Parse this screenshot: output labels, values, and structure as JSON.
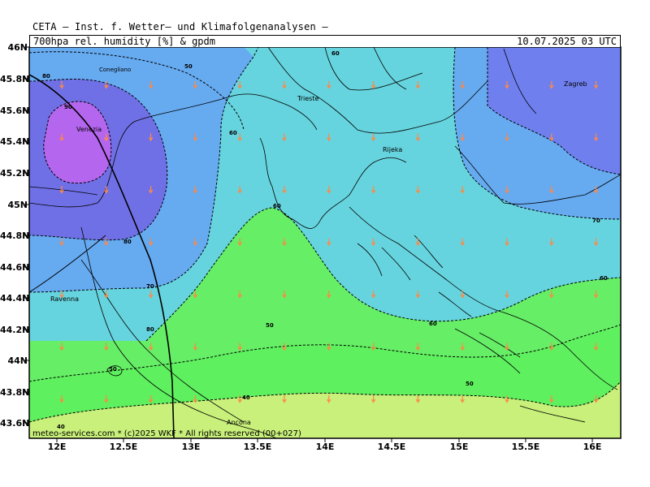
{
  "header": {
    "title": "CETA — Inst. f. Wetter— und Klimafolgenanalysen —",
    "subtitle": "700hpa rel. humidity [%] & gpdm",
    "datetime": "10.07.2025 03 UTC"
  },
  "credit": "meteo-services.com * (c)2025 WKF * All rights reserved (00+027)",
  "axes": {
    "y_labels": [
      "46N",
      "45.8N",
      "45.6N",
      "45.4N",
      "45.2N",
      "45N",
      "44.8N",
      "44.6N",
      "44.4N",
      "44.2N",
      "44N",
      "43.8N",
      "43.6N"
    ],
    "x_labels": [
      "12E",
      "12.5E",
      "13E",
      "13.5E",
      "14E",
      "14.5E",
      "15E",
      "15.5E",
      "16E"
    ]
  },
  "cities": [
    {
      "name": "Conegliano",
      "lon": 12.3,
      "lat": 45.89
    },
    {
      "name": "Venezia",
      "lon": 12.33,
      "lat": 45.44
    },
    {
      "name": "Trieste",
      "lon": 13.77,
      "lat": 45.65
    },
    {
      "name": "Rijeka",
      "lon": 14.44,
      "lat": 45.33
    },
    {
      "name": "Zagreb",
      "lon": 15.98,
      "lat": 45.81
    },
    {
      "name": "Ravenna",
      "lon": 12.2,
      "lat": 44.42
    },
    {
      "name": "Ancona",
      "lon": 13.51,
      "lat": 43.6
    }
  ],
  "contour_labels": [
    "80",
    "90",
    "50",
    "60",
    "80",
    "70",
    "80",
    "60",
    "60",
    "70",
    "60",
    "50",
    "60",
    "50",
    "50",
    "40",
    "40"
  ],
  "colors": {
    "rh_40": "#c8f07a",
    "rh_50": "#66ee66",
    "rh_60": "#66d4de",
    "rh_70": "#66aaf0",
    "rh_80": "#7070e6",
    "rh_90": "#b566ee",
    "arrow": "#ff8844"
  }
}
